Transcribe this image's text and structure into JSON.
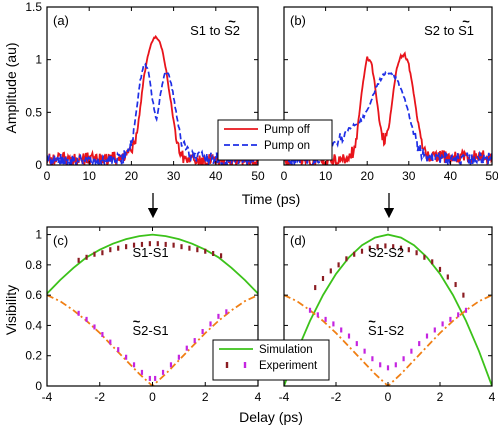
{
  "colors": {
    "red": "#e8141b",
    "blue": "#1f2fe6",
    "green": "#3cc21a",
    "orange": "#f07f14",
    "darkred": "#8b1c22",
    "magenta": "#c424e0"
  },
  "chart_data": [
    {
      "id": "a",
      "type": "line",
      "panel_label": "(a)",
      "annotation": "S1 to S2",
      "annotation_tilde": "S2",
      "xlabel": "",
      "ylabel": "Amplitude (au)",
      "xlim": [
        0,
        50
      ],
      "ylim": [
        0,
        1.5
      ],
      "xticks": [
        0,
        10,
        20,
        30,
        40,
        50
      ],
      "yticks": [
        0,
        0.5,
        1,
        1.5
      ],
      "series": [
        {
          "name": "Pump off",
          "color": "red",
          "dash": false,
          "x": [
            0,
            14,
            19,
            21,
            22,
            23,
            24,
            25,
            26,
            27,
            28,
            29,
            30,
            31,
            32,
            34,
            40,
            50
          ],
          "y": [
            0.06,
            0.06,
            0.08,
            0.22,
            0.5,
            0.85,
            1.05,
            1.18,
            1.22,
            1.14,
            0.95,
            0.7,
            0.42,
            0.2,
            0.08,
            0.05,
            0.04,
            0.04
          ]
        },
        {
          "name": "Pump on",
          "color": "blue",
          "dash": true,
          "x": [
            0,
            14,
            18,
            20,
            21,
            22,
            23,
            24,
            25,
            26,
            27,
            28,
            29,
            30,
            31,
            32,
            33,
            35,
            38,
            50
          ],
          "y": [
            0.05,
            0.05,
            0.06,
            0.2,
            0.45,
            0.78,
            0.97,
            0.9,
            0.62,
            0.42,
            0.7,
            0.88,
            0.85,
            0.65,
            0.4,
            0.22,
            0.12,
            0.08,
            0.06,
            0.06
          ]
        }
      ]
    },
    {
      "id": "b",
      "type": "line",
      "panel_label": "(b)",
      "annotation": "S2 to S1",
      "annotation_tilde": "S1",
      "xlabel": "",
      "ylabel": "",
      "xlim": [
        0,
        50
      ],
      "ylim": [
        0,
        1.5
      ],
      "xticks": [
        0,
        10,
        20,
        30,
        40,
        50
      ],
      "yticks": [
        0,
        0.5,
        1,
        1.5
      ],
      "series": [
        {
          "name": "Pump off",
          "color": "red",
          "dash": false,
          "x": [
            0,
            15,
            17,
            18,
            19,
            20,
            21,
            22,
            23,
            24,
            25,
            26,
            27,
            28,
            29,
            30,
            31,
            32,
            33,
            34,
            36,
            40,
            50
          ],
          "y": [
            0.05,
            0.06,
            0.14,
            0.45,
            0.8,
            1.02,
            0.98,
            0.72,
            0.4,
            0.22,
            0.28,
            0.6,
            0.9,
            1.03,
            1.05,
            0.95,
            0.72,
            0.45,
            0.25,
            0.1,
            0.08,
            0.08,
            0.08
          ]
        },
        {
          "name": "Pump on",
          "color": "blue",
          "dash": true,
          "x": [
            0,
            8,
            12,
            15,
            17,
            18,
            19,
            20,
            21,
            22,
            23,
            24,
            25,
            26,
            27,
            28,
            29,
            30,
            31,
            32,
            33,
            34,
            36,
            40,
            50
          ],
          "y": [
            0.05,
            0.07,
            0.18,
            0.32,
            0.38,
            0.4,
            0.45,
            0.52,
            0.62,
            0.72,
            0.8,
            0.86,
            0.88,
            0.87,
            0.82,
            0.74,
            0.62,
            0.48,
            0.32,
            0.2,
            0.12,
            0.08,
            0.06,
            0.06,
            0.06
          ]
        }
      ]
    },
    {
      "id": "c",
      "type": "line",
      "panel_label": "(c)",
      "annotations": [
        {
          "text": "S1-S1",
          "tilde": false
        },
        {
          "text": "S2-S1",
          "tilde": true
        }
      ],
      "xlabel": "",
      "ylabel": "Visibility",
      "xlim": [
        -4,
        4
      ],
      "ylim": [
        0,
        1.05
      ],
      "xticks": [
        -4,
        -2,
        0,
        2,
        4
      ],
      "yticks": [
        0,
        0.2,
        0.4,
        0.6,
        0.8,
        1
      ],
      "series": [
        {
          "name": "",
          "color": "green",
          "kind": "line",
          "x": [
            -4,
            -3.5,
            -3,
            -2.5,
            -2,
            -1.5,
            -1,
            -0.5,
            0,
            0.5,
            1,
            1.5,
            2,
            2.5,
            3,
            3.5,
            4
          ],
          "y": [
            0.61,
            0.7,
            0.78,
            0.85,
            0.9,
            0.94,
            0.97,
            0.99,
            1.0,
            0.99,
            0.97,
            0.94,
            0.9,
            0.85,
            0.78,
            0.7,
            0.61
          ]
        },
        {
          "name": "",
          "color": "orange",
          "kind": "dashdot",
          "x": [
            -4,
            -3.5,
            -3,
            -2.5,
            -2,
            -1.5,
            -1,
            -0.5,
            0,
            0.5,
            1,
            1.5,
            2,
            2.5,
            3,
            3.5,
            4
          ],
          "y": [
            0.6,
            0.56,
            0.5,
            0.43,
            0.35,
            0.26,
            0.17,
            0.08,
            0.0,
            0.08,
            0.17,
            0.26,
            0.35,
            0.43,
            0.5,
            0.56,
            0.6
          ]
        },
        {
          "name": "",
          "color": "darkred",
          "kind": "points",
          "x": [
            -2.8,
            -2.5,
            -2.2,
            -1.9,
            -1.6,
            -1.3,
            -1.0,
            -0.7,
            -0.4,
            -0.1,
            0.2,
            0.5,
            0.8,
            1.1,
            1.4,
            1.7,
            2.0,
            2.3,
            2.6
          ],
          "y": [
            0.83,
            0.85,
            0.87,
            0.88,
            0.9,
            0.91,
            0.92,
            0.93,
            0.935,
            0.94,
            0.94,
            0.935,
            0.93,
            0.92,
            0.91,
            0.9,
            0.89,
            0.875,
            0.86
          ]
        },
        {
          "name": "",
          "color": "magenta",
          "kind": "points",
          "x": [
            -2.8,
            -2.5,
            -2.2,
            -1.9,
            -1.6,
            -1.3,
            -1.0,
            -0.7,
            -0.4,
            -0.1,
            0.1,
            0.4,
            0.7,
            1.0,
            1.3,
            1.6,
            1.9,
            2.2,
            2.5,
            2.8
          ],
          "y": [
            0.48,
            0.44,
            0.39,
            0.34,
            0.29,
            0.24,
            0.19,
            0.14,
            0.09,
            0.05,
            0.05,
            0.09,
            0.14,
            0.19,
            0.25,
            0.3,
            0.36,
            0.41,
            0.46,
            0.49
          ]
        }
      ]
    },
    {
      "id": "d",
      "type": "line",
      "panel_label": "(d)",
      "annotations": [
        {
          "text": "S2-S2",
          "tilde": false
        },
        {
          "text": "S1-S2",
          "tilde": true
        }
      ],
      "xlabel": "",
      "ylabel": "",
      "xlim": [
        -4,
        4
      ],
      "ylim": [
        0,
        1.05
      ],
      "xticks": [
        -4,
        -2,
        0,
        2,
        4
      ],
      "yticks": [
        0,
        0.2,
        0.4,
        0.6,
        0.8,
        1
      ],
      "series": [
        {
          "name": "",
          "color": "green",
          "kind": "line",
          "x": [
            -4,
            -3.5,
            -3,
            -2.5,
            -2,
            -1.5,
            -1,
            -0.5,
            0,
            0.5,
            1,
            1.5,
            2,
            2.5,
            3,
            3.5,
            4
          ],
          "y": [
            0.0,
            0.23,
            0.43,
            0.6,
            0.74,
            0.85,
            0.93,
            0.98,
            1.0,
            0.98,
            0.93,
            0.85,
            0.74,
            0.6,
            0.43,
            0.23,
            0.0
          ]
        },
        {
          "name": "",
          "color": "orange",
          "kind": "dashdot",
          "x": [
            -4,
            -3.5,
            -3,
            -2.5,
            -2,
            -1.5,
            -1,
            -0.5,
            0,
            0.5,
            1,
            1.5,
            2,
            2.5,
            3,
            3.5,
            4
          ],
          "y": [
            0.6,
            0.56,
            0.5,
            0.43,
            0.35,
            0.26,
            0.17,
            0.08,
            0.0,
            0.08,
            0.17,
            0.26,
            0.35,
            0.43,
            0.5,
            0.56,
            0.6
          ]
        },
        {
          "name": "",
          "color": "darkred",
          "kind": "points",
          "x": [
            -2.8,
            -2.5,
            -2.2,
            -1.9,
            -1.6,
            -1.3,
            -1.0,
            -0.7,
            -0.4,
            -0.1,
            0.2,
            0.5,
            0.8,
            1.1,
            1.4,
            1.7,
            2.0,
            2.3,
            2.6,
            2.9
          ],
          "y": [
            0.65,
            0.71,
            0.76,
            0.8,
            0.84,
            0.87,
            0.89,
            0.91,
            0.92,
            0.925,
            0.92,
            0.91,
            0.9,
            0.88,
            0.85,
            0.82,
            0.77,
            0.72,
            0.67,
            0.6
          ]
        },
        {
          "name": "",
          "color": "magenta",
          "kind": "points",
          "x": [
            -3.0,
            -2.7,
            -2.4,
            -2.1,
            -1.8,
            -1.5,
            -1.2,
            -0.9,
            -0.6,
            -0.3,
            0.0,
            0.3,
            0.6,
            0.9,
            1.2,
            1.5,
            1.8,
            2.1,
            2.4,
            2.7,
            3.0
          ],
          "y": [
            0.5,
            0.47,
            0.44,
            0.41,
            0.37,
            0.33,
            0.28,
            0.23,
            0.18,
            0.14,
            0.12,
            0.14,
            0.18,
            0.23,
            0.28,
            0.33,
            0.37,
            0.41,
            0.44,
            0.47,
            0.5
          ]
        }
      ]
    }
  ],
  "legend_top": {
    "items": [
      {
        "label": "Pump off",
        "color": "red",
        "dash": false
      },
      {
        "label": "Pump on",
        "color": "blue",
        "dash": true
      }
    ]
  },
  "legend_bottom": {
    "items": [
      {
        "label": "Simulation",
        "color": "green",
        "kind": "line"
      },
      {
        "label": "Experiment",
        "color": "darkred",
        "color2": "magenta",
        "kind": "points"
      }
    ]
  },
  "shared_labels": {
    "time_xlabel": "Time (ps)",
    "delay_xlabel": "Delay (ps)"
  }
}
